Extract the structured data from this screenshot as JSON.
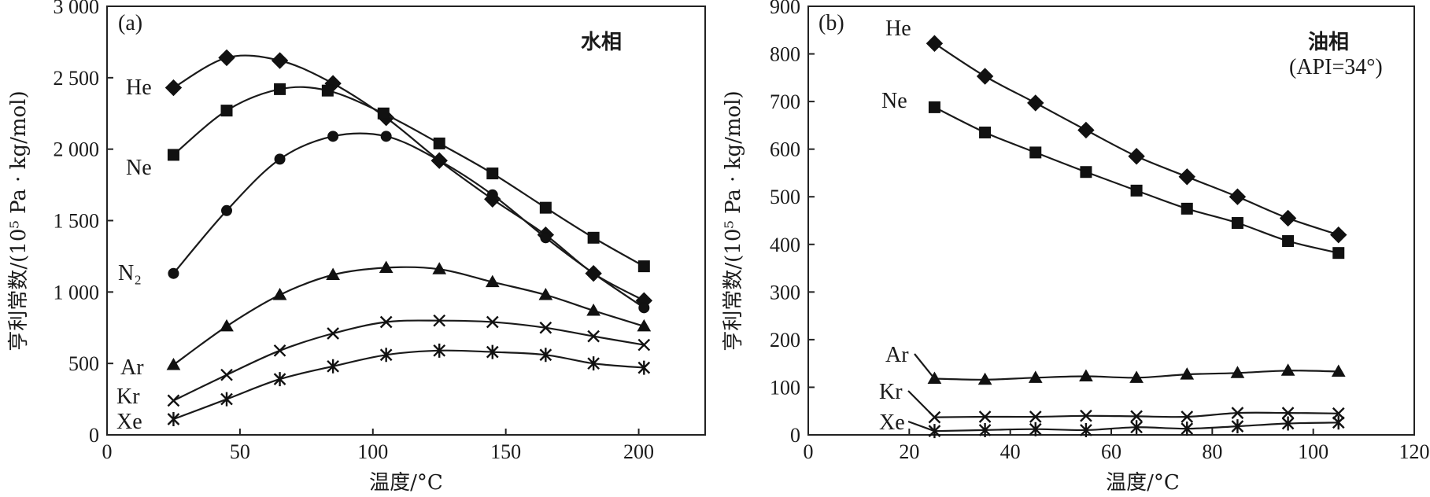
{
  "chart_data": [
    {
      "type": "line",
      "panel_label": "(a)",
      "annotation": "水相",
      "xlabel": "温度/°C",
      "ylabel": "亨利常数/(10⁵ Pa · kg/mol)",
      "xlim": [
        0,
        225
      ],
      "ylim": [
        0,
        3000
      ],
      "xticks": [
        0,
        50,
        100,
        150,
        200
      ],
      "yticks": [
        0,
        500,
        1000,
        1500,
        2000,
        2500,
        3000
      ],
      "ytick_labels": [
        "0",
        "500",
        "1 000",
        "1 500",
        "2 000",
        "2 500",
        "3 000"
      ],
      "series": [
        {
          "name": "He",
          "marker": "diamond",
          "x": [
            25,
            45,
            65,
            85,
            105,
            125,
            145,
            165,
            183,
            202
          ],
          "y": [
            2430,
            2640,
            2620,
            2460,
            2220,
            1920,
            1650,
            1400,
            1130,
            940
          ]
        },
        {
          "name": "Ne",
          "marker": "square",
          "x": [
            25,
            45,
            65,
            83,
            104,
            125,
            145,
            165,
            183,
            202
          ],
          "y": [
            1960,
            2270,
            2420,
            2410,
            2250,
            2040,
            1830,
            1590,
            1380,
            1180
          ]
        },
        {
          "name": "N₂",
          "marker": "circle",
          "x": [
            25,
            45,
            65,
            85,
            105,
            125,
            145,
            165,
            183,
            202
          ],
          "y": [
            1130,
            1570,
            1930,
            2090,
            2090,
            1920,
            1680,
            1380,
            1130,
            890
          ]
        },
        {
          "name": "Ar",
          "marker": "triangle",
          "x": [
            25,
            45,
            65,
            85,
            105,
            125,
            145,
            165,
            183,
            202
          ],
          "y": [
            490,
            760,
            980,
            1120,
            1170,
            1160,
            1070,
            980,
            870,
            760
          ]
        },
        {
          "name": "Kr",
          "marker": "x",
          "x": [
            25,
            45,
            65,
            85,
            105,
            125,
            145,
            165,
            183,
            202
          ],
          "y": [
            240,
            420,
            590,
            710,
            790,
            800,
            790,
            750,
            690,
            630
          ]
        },
        {
          "name": "Xe",
          "marker": "asterisk",
          "x": [
            25,
            45,
            65,
            85,
            105,
            125,
            145,
            165,
            183,
            202
          ],
          "y": [
            110,
            250,
            390,
            480,
            560,
            590,
            580,
            560,
            500,
            470
          ]
        }
      ]
    },
    {
      "type": "line",
      "panel_label": "(b)",
      "annotation": "油相",
      "annotation2": "(API=34°)",
      "xlabel": "温度/°C",
      "ylabel": "亨利常数/(10⁵ Pa · kg/mol)",
      "xlim": [
        0,
        120
      ],
      "ylim": [
        0,
        900
      ],
      "xticks": [
        0,
        20,
        40,
        60,
        80,
        100,
        120
      ],
      "yticks": [
        0,
        100,
        200,
        300,
        400,
        500,
        600,
        700,
        800,
        900
      ],
      "ytick_labels": [
        "0",
        "100",
        "200",
        "300",
        "400",
        "500",
        "600",
        "700",
        "800",
        "900"
      ],
      "series": [
        {
          "name": "He",
          "marker": "diamond",
          "x": [
            25,
            35,
            45,
            55,
            65,
            75,
            85,
            95,
            105
          ],
          "y": [
            822,
            753,
            697,
            640,
            585,
            542,
            500,
            455,
            420
          ]
        },
        {
          "name": "Ne",
          "marker": "square",
          "x": [
            25,
            35,
            45,
            55,
            65,
            75,
            85,
            95,
            105
          ],
          "y": [
            688,
            635,
            593,
            552,
            513,
            475,
            445,
            407,
            382
          ]
        },
        {
          "name": "Ar",
          "marker": "triangle",
          "x": [
            25,
            35,
            45,
            55,
            65,
            75,
            85,
            95,
            105
          ],
          "y": [
            118,
            116,
            120,
            123,
            120,
            127,
            130,
            135,
            133
          ]
        },
        {
          "name": "Kr",
          "marker": "x",
          "x": [
            25,
            35,
            45,
            55,
            65,
            75,
            85,
            95,
            105
          ],
          "y": [
            37,
            38,
            38,
            40,
            39,
            38,
            46,
            46,
            45
          ]
        },
        {
          "name": "Xe",
          "marker": "asterisk",
          "x": [
            25,
            35,
            45,
            55,
            65,
            75,
            85,
            95,
            105
          ],
          "y": [
            8,
            10,
            12,
            10,
            16,
            13,
            18,
            24,
            26
          ]
        }
      ]
    }
  ]
}
